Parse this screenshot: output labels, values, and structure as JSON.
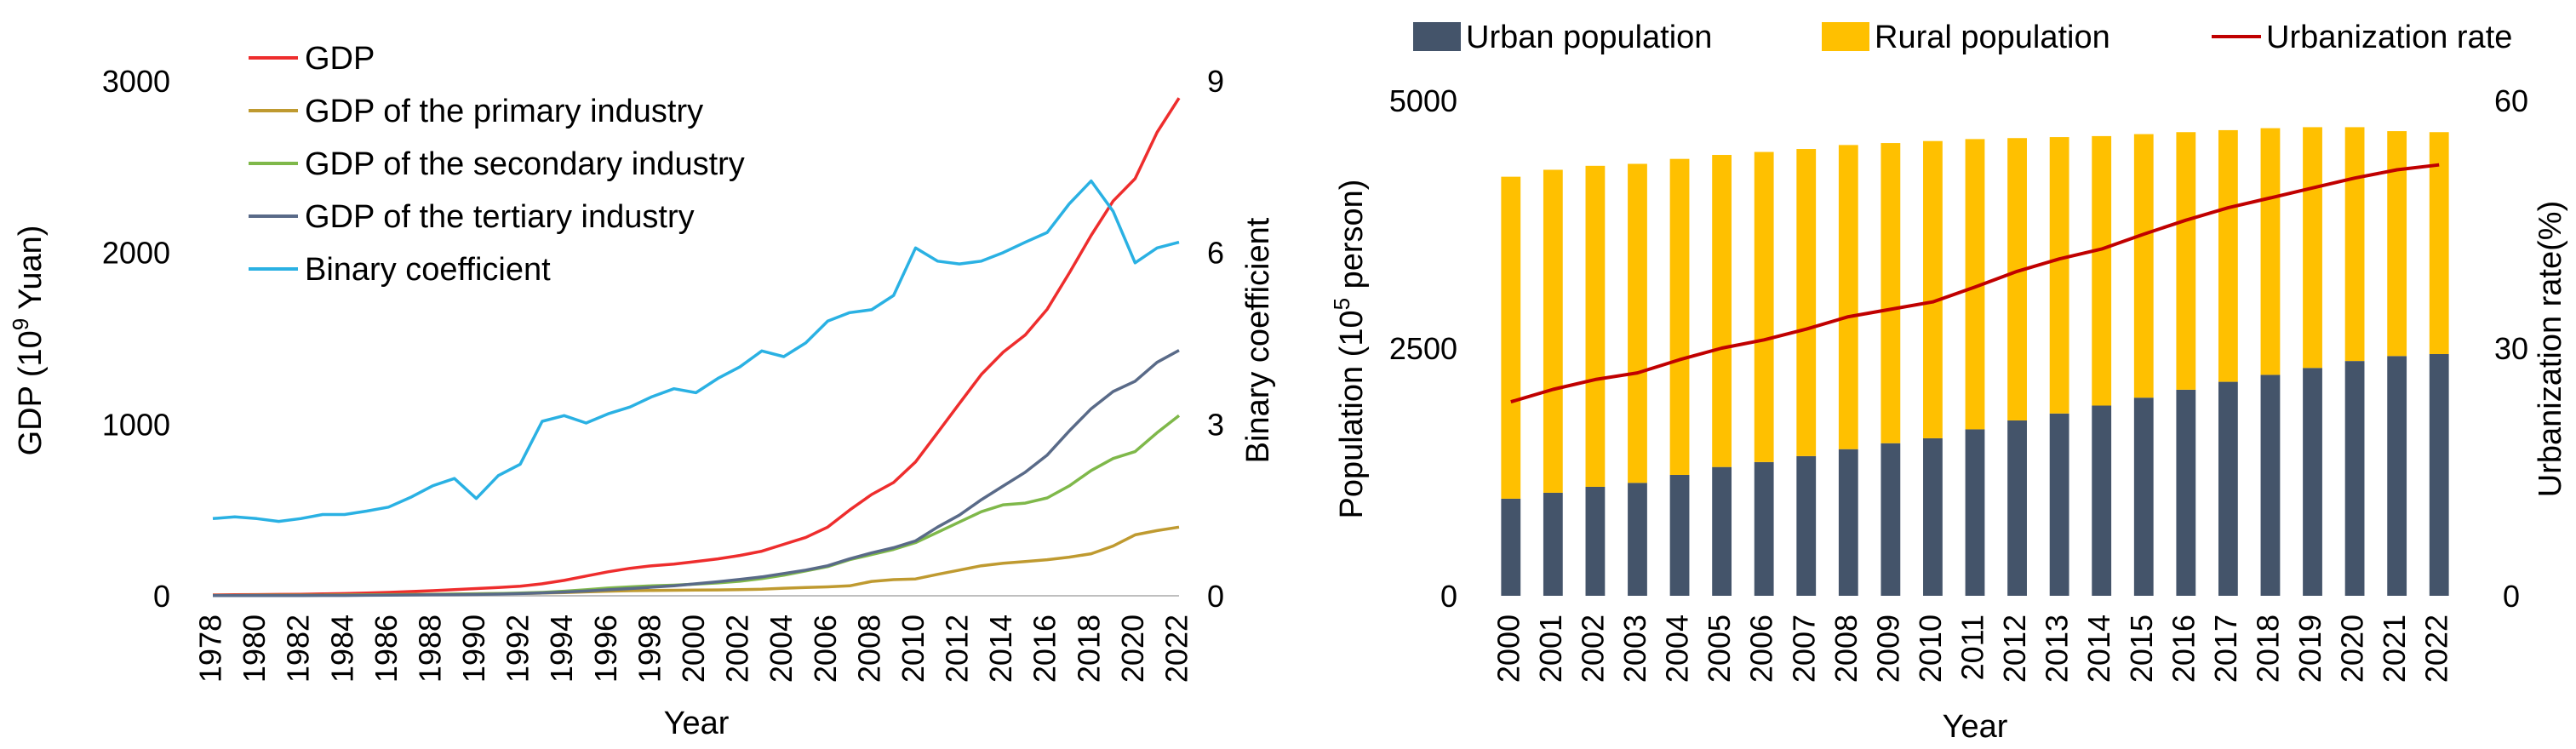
{
  "chart_data": [
    {
      "type": "line",
      "title": "",
      "xlabel": "Year",
      "ylabel_left": "GDP (10",
      "ylabel_left_sup": "9",
      "ylabel_left_tail": " Yuan)",
      "ylabel_right": "Binary coefficient",
      "ylim_left": [
        0,
        3000
      ],
      "ylim_right": [
        0,
        9
      ],
      "yticks_left": [
        "0",
        "1000",
        "2000",
        "3000"
      ],
      "yticks_right": [
        "0",
        "3",
        "6",
        "9"
      ],
      "x": [
        1978,
        1979,
        1980,
        1981,
        1982,
        1983,
        1984,
        1985,
        1986,
        1987,
        1988,
        1989,
        1990,
        1991,
        1992,
        1993,
        1994,
        1995,
        1996,
        1997,
        1998,
        1999,
        2000,
        2001,
        2002,
        2003,
        2004,
        2005,
        2006,
        2007,
        2008,
        2009,
        2010,
        2011,
        2012,
        2013,
        2014,
        2015,
        2016,
        2017,
        2018,
        2019,
        2020,
        2021,
        2022
      ],
      "xtick_labels": [
        "1978",
        "1980",
        "1982",
        "1984",
        "1986",
        "1988",
        "1990",
        "1992",
        "1994",
        "1996",
        "1998",
        "2000",
        "2002",
        "2004",
        "2006",
        "2008",
        "2010",
        "2012",
        "2014",
        "2016",
        "2018",
        "2020",
        "2022"
      ],
      "series": [
        {
          "name": "GDP",
          "axis": "left",
          "color": "#ee2d2d",
          "values": [
            5,
            6,
            7,
            8,
            9,
            11,
            13,
            16,
            20,
            25,
            30,
            36,
            42,
            48,
            56,
            70,
            90,
            115,
            140,
            160,
            175,
            185,
            200,
            215,
            235,
            260,
            300,
            340,
            400,
            500,
            590,
            660,
            780,
            950,
            1120,
            1290,
            1420,
            1520,
            1670,
            1880,
            2100,
            2300,
            2430,
            2700,
            2900
          ]
        },
        {
          "name": "GDP of the primary industry",
          "axis": "left",
          "color": "#bf9a30",
          "values": [
            2,
            2,
            2,
            3,
            3,
            4,
            5,
            6,
            7,
            8,
            9,
            10,
            12,
            13,
            14,
            16,
            19,
            23,
            27,
            30,
            31,
            32,
            33,
            34,
            36,
            38,
            44,
            48,
            52,
            58,
            84,
            94,
            98,
            125,
            150,
            175,
            190,
            200,
            210,
            225,
            245,
            290,
            355,
            380,
            400
          ]
        },
        {
          "name": "GDP of the secondary industry",
          "axis": "left",
          "color": "#7fb84a",
          "values": [
            2,
            2,
            3,
            3,
            3,
            4,
            4,
            5,
            6,
            7,
            8,
            10,
            11,
            13,
            16,
            20,
            27,
            35,
            45,
            52,
            58,
            62,
            68,
            75,
            85,
            100,
            120,
            145,
            170,
            210,
            240,
            270,
            310,
            370,
            430,
            490,
            530,
            540,
            570,
            640,
            730,
            800,
            840,
            950,
            1050
          ]
        },
        {
          "name": "GDP of the tertiary industry",
          "axis": "left",
          "color": "#596a88",
          "values": [
            1,
            1,
            1,
            1,
            1,
            2,
            2,
            3,
            4,
            5,
            6,
            7,
            8,
            10,
            13,
            17,
            22,
            28,
            35,
            42,
            50,
            58,
            70,
            82,
            95,
            110,
            130,
            150,
            175,
            215,
            250,
            280,
            320,
            400,
            470,
            560,
            640,
            720,
            820,
            960,
            1090,
            1190,
            1250,
            1360,
            1430
          ]
        },
        {
          "name": "Binary coefficient",
          "axis": "right",
          "color": "#2ab1e3",
          "values": [
            1.35,
            1.38,
            1.35,
            1.3,
            1.35,
            1.42,
            1.42,
            1.48,
            1.55,
            1.72,
            1.92,
            2.05,
            1.7,
            2.1,
            2.3,
            3.05,
            3.15,
            3.02,
            3.18,
            3.3,
            3.48,
            3.62,
            3.55,
            3.8,
            4.0,
            4.28,
            4.18,
            4.42,
            4.8,
            4.95,
            5.0,
            5.25,
            6.08,
            5.85,
            5.8,
            5.85,
            6.0,
            6.18,
            6.35,
            6.85,
            7.25,
            6.72,
            5.82,
            6.08,
            6.18
          ]
        }
      ]
    },
    {
      "type": "bar",
      "stacked": true,
      "title": "",
      "xlabel": "Year",
      "ylabel_left": "Population (10",
      "ylabel_left_sup": "5",
      "ylabel_left_tail": " person)",
      "ylabel_right": "Urbanization rate(%)",
      "ylim_left": [
        0,
        5000
      ],
      "ylim_right": [
        0,
        60
      ],
      "yticks_left": [
        "0",
        "2500",
        "5000"
      ],
      "yticks_right": [
        "0",
        "30",
        "60"
      ],
      "categories": [
        "2000",
        "2001",
        "2002",
        "2003",
        "2004",
        "2005",
        "2006",
        "2007",
        "2008",
        "2009",
        "2010",
        "2011",
        "2012",
        "2013",
        "2014",
        "2015",
        "2016",
        "2017",
        "2018",
        "2019",
        "2020",
        "2021",
        "2022"
      ],
      "series": [
        {
          "name": "Urban population",
          "kind": "bar",
          "color": "#44546a",
          "values": [
            980,
            1040,
            1100,
            1140,
            1220,
            1300,
            1350,
            1410,
            1480,
            1540,
            1590,
            1680,
            1770,
            1840,
            1920,
            2000,
            2080,
            2160,
            2230,
            2300,
            2370,
            2420,
            2440
          ]
        },
        {
          "name": "Rural population",
          "kind": "bar",
          "color": "#ffc000",
          "values": [
            3250,
            3260,
            3240,
            3220,
            3190,
            3150,
            3130,
            3100,
            3070,
            3030,
            3000,
            2930,
            2850,
            2790,
            2720,
            2660,
            2600,
            2540,
            2490,
            2430,
            2360,
            2270,
            2240
          ]
        },
        {
          "name": "Urbanization rate",
          "kind": "line",
          "axis": "right",
          "color": "#c00000",
          "values": [
            23.5,
            25,
            26.2,
            27,
            28.6,
            30,
            31,
            32.3,
            33.8,
            34.7,
            35.6,
            37.4,
            39.3,
            40.8,
            42,
            43.8,
            45.5,
            47,
            48.2,
            49.4,
            50.6,
            51.6,
            52.2
          ]
        }
      ]
    }
  ]
}
